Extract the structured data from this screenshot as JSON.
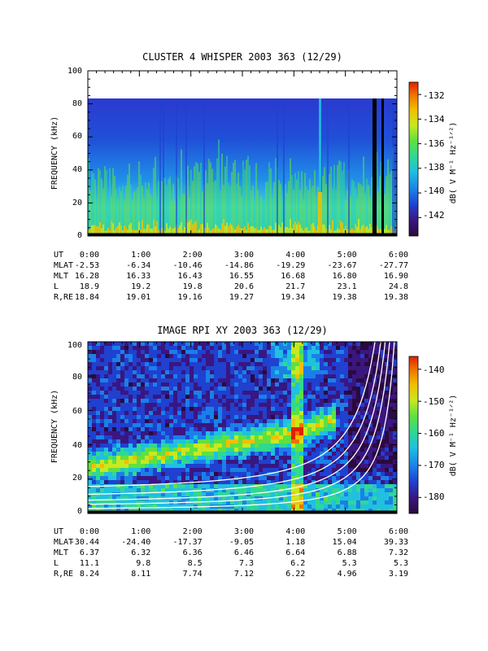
{
  "chart_data": [
    {
      "type": "heatmap",
      "title": "CLUSTER 4 WHISPER 2003 363 (12/29)",
      "ylabel": "FREQUENCY (kHz)",
      "ylim": [
        0,
        100
      ],
      "yticks": [
        "0",
        "20",
        "40",
        "60",
        "80",
        "100"
      ],
      "xlim": [
        "0:00",
        "6:00"
      ],
      "data_band_khz": [
        2,
        80
      ],
      "colorbar": {
        "label": "dB( V M⁻¹ Hz⁻¹ᐟ²)",
        "range": [
          -143.5,
          -131
        ],
        "ticks": [
          "-132",
          "-134",
          "-136",
          "-138",
          "-140",
          "-142"
        ],
        "tick_values": [
          -132,
          -134,
          -136,
          -138,
          -140,
          -142
        ]
      },
      "ephemeris": {
        "rows": [
          {
            "label": "UT",
            "values": [
              "0:00",
              "1:00",
              "2:00",
              "3:00",
              "4:00",
              "5:00",
              "6:00"
            ]
          },
          {
            "label": "MLAT",
            "values": [
              "-2.53",
              "-6.34",
              "-10.46",
              "-14.86",
              "-19.29",
              "-23.67",
              "-27.77"
            ]
          },
          {
            "label": "MLT",
            "values": [
              "16.28",
              "16.33",
              "16.43",
              "16.55",
              "16.68",
              "16.80",
              "16.90"
            ]
          },
          {
            "label": "L",
            "values": [
              "18.9",
              "19.2",
              "19.8",
              "20.6",
              "21.7",
              "23.1",
              "24.8"
            ]
          },
          {
            "label": "R,RE",
            "values": [
              "18.84",
              "19.01",
              "19.16",
              "19.27",
              "19.34",
              "19.38",
              "19.38"
            ]
          }
        ]
      }
    },
    {
      "type": "heatmap",
      "title": "IMAGE RPI XY 2003 363 (12/29)",
      "ylabel": "FREQUENCY (kHz)",
      "ylim": [
        0,
        100
      ],
      "yticks": [
        "0",
        "20",
        "40",
        "60",
        "80",
        "100"
      ],
      "xlim": [
        "0:00",
        "6:00"
      ],
      "colorbar": {
        "label": "dB( V M⁻¹ Hz⁻¹ᐟ²)",
        "range": [
          -185,
          -136
        ],
        "ticks": [
          "-140",
          "-150",
          "-160",
          "-170",
          "-180"
        ],
        "tick_values": [
          -140,
          -150,
          -160,
          -170,
          -180
        ]
      },
      "ephemeris": {
        "rows": [
          {
            "label": "UT",
            "values": [
              "0:00",
              "1:00",
              "2:00",
              "3:00",
              "4:00",
              "5:00",
              "6:00"
            ]
          },
          {
            "label": "MLAT",
            "values": [
              "-30.44",
              "-24.40",
              "-17.37",
              "-9.05",
              "1.18",
              "15.04",
              "39.33"
            ]
          },
          {
            "label": "MLT",
            "values": [
              "6.37",
              "6.32",
              "6.36",
              "6.46",
              "6.64",
              "6.88",
              "7.32"
            ]
          },
          {
            "label": "L",
            "values": [
              "11.1",
              "9.8",
              "8.5",
              "7.3",
              "6.2",
              "5.3",
              "5.3"
            ]
          },
          {
            "label": "R,RE",
            "values": [
              "8.24",
              "8.11",
              "7.74",
              "7.12",
              "6.22",
              "4.96",
              "3.19"
            ]
          }
        ]
      }
    }
  ],
  "colors": {
    "scale": [
      "#2b0a3d",
      "#3a1680",
      "#2040d0",
      "#1a80e8",
      "#20c0e0",
      "#30d890",
      "#60e040",
      "#c8e820",
      "#f0c000",
      "#f07000",
      "#e02000"
    ],
    "frame": "#000000",
    "overlay_curves": "#ffffff"
  }
}
